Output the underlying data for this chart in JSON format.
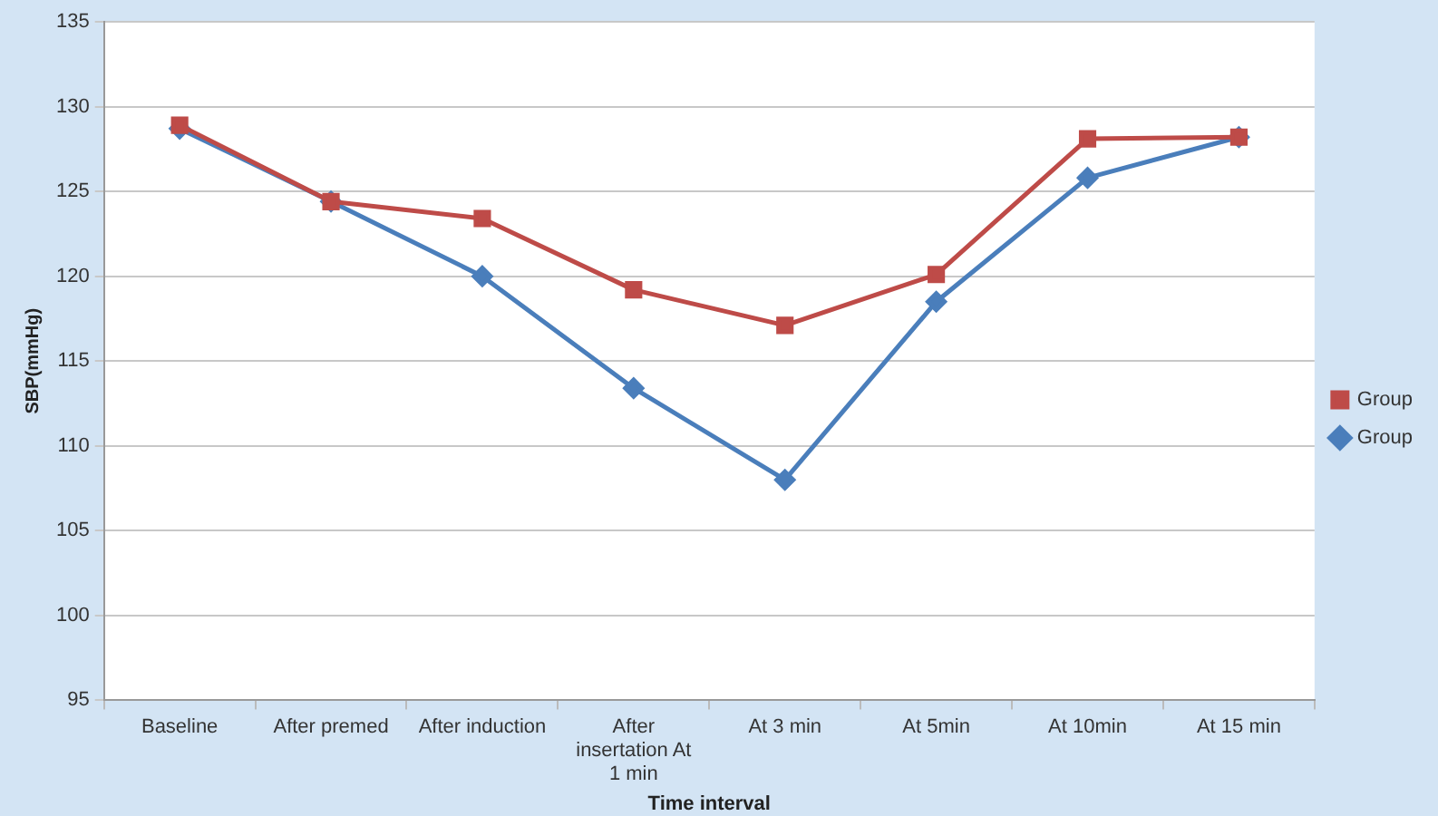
{
  "chart_data": {
    "type": "line",
    "xlabel": "Time interval",
    "ylabel": "SBP(mmHg)",
    "categories": [
      "Baseline",
      "After premed",
      "After induction",
      "After insertation At 1 min",
      "At 3 min",
      "At 5min",
      "At 10min",
      "At 15 min"
    ],
    "series": [
      {
        "name": "Group",
        "color": "#4a7ebb",
        "marker": "diamond",
        "values": [
          128.7,
          124.4,
          120.0,
          113.4,
          108.0,
          118.5,
          125.8,
          128.2
        ]
      },
      {
        "name": "Group",
        "color": "#be4b48",
        "marker": "square",
        "values": [
          128.9,
          124.4,
          123.4,
          119.2,
          117.1,
          120.1,
          128.1,
          128.2
        ]
      }
    ],
    "ylim": [
      95,
      135
    ],
    "yticks": [
      95,
      100,
      105,
      110,
      115,
      120,
      125,
      130,
      135
    ],
    "grid": "y",
    "legend": "right",
    "line_style": "solid"
  }
}
